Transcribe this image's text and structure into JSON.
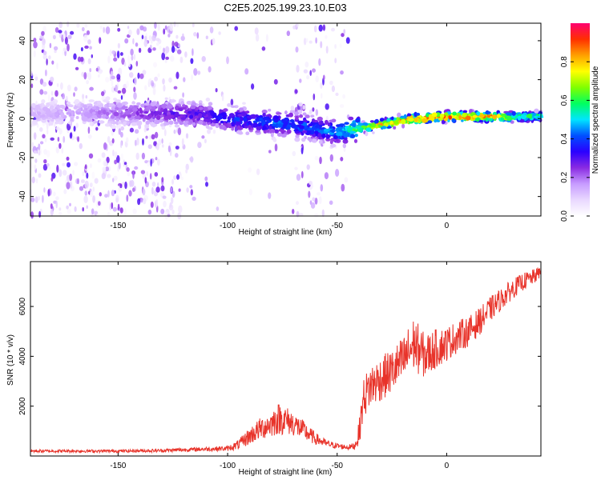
{
  "title": "C2E5.2025.199.23.10.E03",
  "chart_data": [
    {
      "type": "heatmap",
      "xlabel": "Height of straight line (km)",
      "ylabel": "Frequency (Hz)",
      "xlim": [
        -190,
        43
      ],
      "ylim": [
        -50,
        49
      ],
      "x_ticks": [
        -150,
        -100,
        -50,
        0
      ],
      "y_ticks": [
        -40,
        -20,
        0,
        20,
        40
      ],
      "colorbar": {
        "label": "Normalized spectral amplitude",
        "range": [
          0,
          1
        ],
        "ticks": [
          0.0,
          0.2,
          0.4,
          0.6,
          0.8
        ],
        "colormap": [
          "#ffffff",
          "#e9d8ff",
          "#c79cff",
          "#8a2be2",
          "#2a00ff",
          "#0050ff",
          "#00e5ff",
          "#00ff60",
          "#80ff00",
          "#ffff00",
          "#ffa000",
          "#ff3000",
          "#ff0070"
        ]
      },
      "ridge": {
        "x": [
          -185,
          -160,
          -130,
          -110,
          -100,
          -90,
          -80,
          -70,
          -60,
          -50,
          -45,
          -40,
          -35,
          -30,
          -25,
          -20,
          -15,
          -10,
          -5,
          0,
          10,
          20,
          30,
          43
        ],
        "frequency": [
          3,
          3,
          3,
          2,
          0,
          -1,
          -2,
          -3,
          -5,
          -7,
          -6,
          -5,
          -4,
          -3,
          -2,
          -1,
          0,
          0,
          1,
          1,
          1,
          1,
          1,
          1
        ],
        "peak_amplitude": [
          0.15,
          0.2,
          0.3,
          0.35,
          0.4,
          0.42,
          0.45,
          0.45,
          0.45,
          0.5,
          0.6,
          0.7,
          0.8,
          0.85,
          0.9,
          0.9,
          0.95,
          0.95,
          0.95,
          0.95,
          0.95,
          0.9,
          0.7,
          0.6
        ]
      }
    },
    {
      "type": "line",
      "xlabel": "Height of straight line (km)",
      "ylabel": "SNR (10 * v/v)",
      "xlim": [
        -190,
        43
      ],
      "ylim": [
        0,
        7800
      ],
      "x_ticks": [
        -150,
        -100,
        -50,
        0
      ],
      "y_ticks": [
        2000,
        4000,
        6000
      ],
      "series": [
        {
          "color": "#e8332a",
          "x": [
            -190,
            -170,
            -150,
            -130,
            -120,
            -110,
            -100,
            -95,
            -90,
            -85,
            -80,
            -77,
            -74,
            -70,
            -65,
            -60,
            -55,
            -50,
            -45,
            -42,
            -40,
            -38,
            -35,
            -30,
            -25,
            -20,
            -15,
            -10,
            -5,
            0,
            5,
            10,
            15,
            20,
            25,
            30,
            35,
            40,
            43
          ],
          "y": [
            200,
            200,
            200,
            220,
            250,
            280,
            300,
            450,
            800,
            1100,
            1300,
            1500,
            1450,
            1300,
            1000,
            700,
            500,
            400,
            350,
            400,
            900,
            2300,
            2800,
            3100,
            3400,
            3800,
            4500,
            4000,
            4300,
            4500,
            4800,
            5000,
            5400,
            5900,
            6300,
            6700,
            7000,
            7200,
            7400
          ],
          "noise_amplitude": [
            60,
            60,
            60,
            70,
            80,
            90,
            100,
            200,
            350,
            450,
            550,
            650,
            600,
            500,
            400,
            250,
            150,
            120,
            100,
            150,
            500,
            800,
            900,
            900,
            900,
            1000,
            1100,
            900,
            800,
            700,
            650,
            600,
            550,
            500,
            450,
            400,
            350,
            300,
            250
          ]
        }
      ]
    }
  ]
}
